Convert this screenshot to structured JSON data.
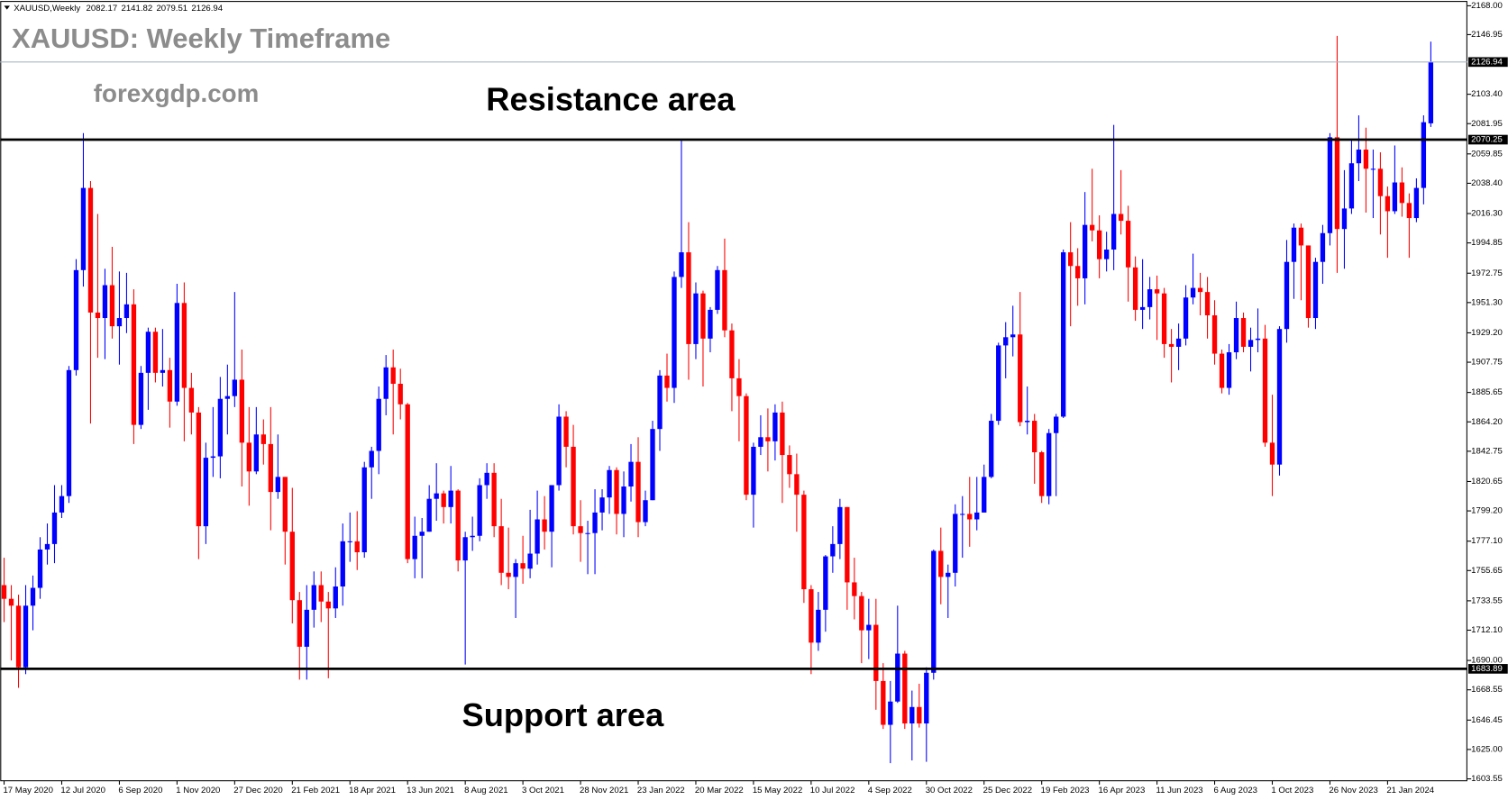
{
  "chart_data": {
    "type": "candlestick",
    "symbol": "XAUUSD,Weekly",
    "title": "XAUUSD: Weekly Timeframe",
    "watermark": "forexgdp.com",
    "annotations": [
      "Resistance area",
      "Support area"
    ],
    "up_color": "#0000ff",
    "down_color": "#ff0000",
    "levels": [
      2070.25,
      1683.89
    ],
    "level_color": "#000000",
    "price_line_color": "#a9b8c6",
    "ylim": [
      1602.15,
      2170.81
    ],
    "yticks": [
      {
        "value": 2168,
        "label": "2168.00"
      },
      2146.95,
      {
        "value": 2103.4,
        "label": "2103.40"
      },
      2081.95,
      2059.85,
      {
        "value": 2038.4,
        "label": "2038.40"
      },
      {
        "value": 2016.3,
        "label": "2016.30"
      },
      1994.85,
      1972.75,
      {
        "value": 1951.3,
        "label": "1951.30"
      },
      {
        "value": 1929.2,
        "label": "1929.20"
      },
      1907.75,
      1885.65,
      {
        "value": 1864.2,
        "label": "1864.20"
      },
      1842.75,
      1820.65,
      {
        "value": 1799.2,
        "label": "1799.20"
      },
      {
        "value": 1777.1,
        "label": "1777.10"
      },
      1755.65,
      1733.55,
      {
        "value": 1712.1,
        "label": "1712.10"
      },
      {
        "value": 1690,
        "label": "1690.00"
      },
      1668.55,
      1646.45,
      {
        "value": 1625,
        "label": "1625.00"
      },
      1603.55
    ],
    "categories": [
      "17 May 2020",
      null,
      null,
      null,
      null,
      null,
      null,
      null,
      "12 Jul 2020",
      null,
      null,
      null,
      null,
      null,
      null,
      null,
      "6 Sep 2020",
      null,
      null,
      null,
      null,
      null,
      null,
      null,
      "1 Nov 2020",
      null,
      null,
      null,
      null,
      null,
      null,
      null,
      "27 Dec 2020",
      null,
      null,
      null,
      null,
      null,
      null,
      null,
      "21 Feb 2021",
      null,
      null,
      null,
      null,
      null,
      null,
      null,
      "18 Apr 2021",
      null,
      null,
      null,
      null,
      null,
      null,
      null,
      "13 Jun 2021",
      null,
      null,
      null,
      null,
      null,
      null,
      null,
      "8 Aug 2021",
      null,
      null,
      null,
      null,
      null,
      null,
      null,
      "3 Oct 2021",
      null,
      null,
      null,
      null,
      null,
      null,
      null,
      "28 Nov 2021",
      null,
      null,
      null,
      null,
      null,
      null,
      null,
      "23 Jan 2022",
      null,
      null,
      null,
      null,
      null,
      null,
      null,
      "20 Mar 2022",
      null,
      null,
      null,
      null,
      null,
      null,
      null,
      "15 May 2022",
      null,
      null,
      null,
      null,
      null,
      null,
      null,
      "10 Jul 2022",
      null,
      null,
      null,
      null,
      null,
      null,
      null,
      "4 Sep 2022",
      null,
      null,
      null,
      null,
      null,
      null,
      null,
      "30 Oct 2022",
      null,
      null,
      null,
      null,
      null,
      null,
      null,
      "25 Dec 2022",
      null,
      null,
      null,
      null,
      null,
      null,
      null,
      "19 Feb 2023",
      null,
      null,
      null,
      null,
      null,
      null,
      null,
      "16 Apr 2023",
      null,
      null,
      null,
      null,
      null,
      null,
      null,
      "11 Jun 2023",
      null,
      null,
      null,
      null,
      null,
      null,
      null,
      "6 Aug 2023",
      null,
      null,
      null,
      null,
      null,
      null,
      null,
      "1 Oct 2023",
      null,
      null,
      null,
      null,
      null,
      null,
      null,
      "26 Nov 2023",
      null,
      null,
      null,
      null,
      null,
      null,
      null,
      "21 Jan 2024",
      null,
      null,
      null,
      null,
      null,
      null
    ],
    "candles": [
      [
        1745,
        1765,
        1718,
        1735
      ],
      [
        1735,
        1745,
        1690,
        1730
      ],
      [
        1730,
        1738,
        1670,
        1685
      ],
      [
        1685,
        1745,
        1680,
        1730
      ],
      [
        1730,
        1752,
        1712,
        1743
      ],
      [
        1743,
        1780,
        1735,
        1771
      ],
      [
        1771,
        1790,
        1760,
        1775
      ],
      [
        1775,
        1818,
        1761,
        1798
      ],
      [
        1798,
        1818,
        1794,
        1810
      ],
      [
        1810,
        1905,
        1805,
        1902
      ],
      [
        1902,
        1983,
        1898,
        1975
      ],
      [
        1975,
        2075,
        1963,
        2035
      ],
      [
        2035,
        2040,
        1863,
        1944
      ],
      [
        1944,
        2016,
        1911,
        1940
      ],
      [
        1940,
        1976,
        1910,
        1964
      ],
      [
        1964,
        1992,
        1925,
        1934
      ],
      [
        1934,
        1974,
        1906,
        1940
      ],
      [
        1940,
        1973,
        1929,
        1950
      ],
      [
        1950,
        1961,
        1848,
        1862
      ],
      [
        1862,
        1905,
        1859,
        1900
      ],
      [
        1900,
        1933,
        1873,
        1930
      ],
      [
        1930,
        1933,
        1893,
        1900
      ],
      [
        1900,
        1932,
        1890,
        1902
      ],
      [
        1902,
        1911,
        1860,
        1879
      ],
      [
        1879,
        1965,
        1876,
        1951
      ],
      [
        1951,
        1966,
        1850,
        1889
      ],
      [
        1889,
        1900,
        1855,
        1871
      ],
      [
        1871,
        1875,
        1764,
        1788
      ],
      [
        1788,
        1849,
        1775,
        1838
      ],
      [
        1838,
        1875,
        1824,
        1839
      ],
      [
        1839,
        1897,
        1823,
        1881
      ],
      [
        1881,
        1906,
        1855,
        1883
      ],
      [
        1883,
        1959,
        1875,
        1895
      ],
      [
        1895,
        1917,
        1817,
        1849
      ],
      [
        1849,
        1875,
        1803,
        1828
      ],
      [
        1828,
        1875,
        1826,
        1855
      ],
      [
        1855,
        1866,
        1833,
        1848
      ],
      [
        1848,
        1875,
        1785,
        1813
      ],
      [
        1813,
        1855,
        1808,
        1824
      ],
      [
        1824,
        1824,
        1760,
        1784
      ],
      [
        1784,
        1816,
        1717,
        1734
      ],
      [
        1734,
        1740,
        1676,
        1700
      ],
      [
        1700,
        1745,
        1676,
        1727
      ],
      [
        1727,
        1755,
        1714,
        1745
      ],
      [
        1745,
        1755,
        1718,
        1733
      ],
      [
        1733,
        1740,
        1677,
        1728
      ],
      [
        1728,
        1758,
        1721,
        1744
      ],
      [
        1744,
        1790,
        1730,
        1777
      ],
      [
        1777,
        1798,
        1762,
        1777
      ],
      [
        1777,
        1799,
        1756,
        1769
      ],
      [
        1769,
        1835,
        1765,
        1831
      ],
      [
        1831,
        1846,
        1808,
        1843
      ],
      [
        1843,
        1890,
        1826,
        1881
      ],
      [
        1881,
        1913,
        1869,
        1904
      ],
      [
        1904,
        1917,
        1855,
        1892
      ],
      [
        1892,
        1903,
        1866,
        1877
      ],
      [
        1877,
        1878,
        1761,
        1764
      ],
      [
        1764,
        1795,
        1750,
        1781
      ],
      [
        1781,
        1794,
        1750,
        1784
      ],
      [
        1784,
        1818,
        1784,
        1808
      ],
      [
        1808,
        1834,
        1792,
        1812
      ],
      [
        1812,
        1814,
        1790,
        1802
      ],
      [
        1802,
        1832,
        1790,
        1814
      ],
      [
        1814,
        1815,
        1755,
        1763
      ],
      [
        1763,
        1784,
        1687,
        1780
      ],
      [
        1780,
        1795,
        1770,
        1781
      ],
      [
        1781,
        1823,
        1777,
        1818
      ],
      [
        1818,
        1834,
        1808,
        1827
      ],
      [
        1827,
        1834,
        1780,
        1788
      ],
      [
        1788,
        1808,
        1745,
        1754
      ],
      [
        1754,
        1787,
        1742,
        1751
      ],
      [
        1751,
        1764,
        1721,
        1761
      ],
      [
        1761,
        1781,
        1746,
        1757
      ],
      [
        1757,
        1800,
        1750,
        1768
      ],
      [
        1768,
        1814,
        1760,
        1793
      ],
      [
        1793,
        1810,
        1771,
        1784
      ],
      [
        1784,
        1818,
        1758,
        1818
      ],
      [
        1818,
        1877,
        1814,
        1868
      ],
      [
        1868,
        1872,
        1831,
        1846
      ],
      [
        1846,
        1862,
        1782,
        1788
      ],
      [
        1788,
        1807,
        1762,
        1783
      ],
      [
        1783,
        1792,
        1753,
        1783
      ],
      [
        1783,
        1815,
        1753,
        1798
      ],
      [
        1798,
        1815,
        1785,
        1809
      ],
      [
        1809,
        1832,
        1797,
        1829
      ],
      [
        1829,
        1831,
        1782,
        1797
      ],
      [
        1797,
        1828,
        1780,
        1817
      ],
      [
        1817,
        1848,
        1806,
        1835
      ],
      [
        1835,
        1853,
        1780,
        1791
      ],
      [
        1791,
        1814,
        1788,
        1807
      ],
      [
        1807,
        1865,
        1807,
        1859
      ],
      [
        1859,
        1902,
        1843,
        1898
      ],
      [
        1898,
        1914,
        1879,
        1889
      ],
      [
        1889,
        1974,
        1878,
        1970
      ],
      [
        1970,
        2070,
        1962,
        1988
      ],
      [
        1988,
        2010,
        1895,
        1921
      ],
      [
        1921,
        1966,
        1910,
        1958
      ],
      [
        1958,
        1960,
        1890,
        1925
      ],
      [
        1925,
        1948,
        1915,
        1946
      ],
      [
        1946,
        1978,
        1943,
        1975
      ],
      [
        1975,
        1998,
        1926,
        1931
      ],
      [
        1931,
        1936,
        1872,
        1896
      ],
      [
        1896,
        1910,
        1850,
        1883
      ],
      [
        1883,
        1885,
        1807,
        1811
      ],
      [
        1811,
        1849,
        1787,
        1846
      ],
      [
        1846,
        1869,
        1840,
        1853
      ],
      [
        1853,
        1874,
        1828,
        1850
      ],
      [
        1850,
        1877,
        1836,
        1871
      ],
      [
        1871,
        1879,
        1805,
        1840
      ],
      [
        1840,
        1847,
        1816,
        1826
      ],
      [
        1826,
        1841,
        1784,
        1811
      ],
      [
        1811,
        1814,
        1732,
        1742
      ],
      [
        1742,
        1745,
        1680,
        1703
      ],
      [
        1703,
        1740,
        1697,
        1727
      ],
      [
        1727,
        1767,
        1711,
        1766
      ],
      [
        1766,
        1788,
        1754,
        1775
      ],
      [
        1775,
        1808,
        1764,
        1802
      ],
      [
        1802,
        1802,
        1727,
        1747
      ],
      [
        1747,
        1765,
        1720,
        1737
      ],
      [
        1737,
        1740,
        1688,
        1712
      ],
      [
        1712,
        1735,
        1691,
        1716
      ],
      [
        1716,
        1735,
        1654,
        1675
      ],
      [
        1675,
        1688,
        1640,
        1643
      ],
      [
        1643,
        1675,
        1615,
        1660
      ],
      [
        1660,
        1730,
        1659,
        1695
      ],
      [
        1695,
        1697,
        1640,
        1644
      ],
      [
        1644,
        1668,
        1617,
        1656
      ],
      [
        1656,
        1673,
        1641,
        1644
      ],
      [
        1644,
        1685,
        1616,
        1681
      ],
      [
        1681,
        1771,
        1676,
        1770
      ],
      [
        1770,
        1787,
        1731,
        1751
      ],
      [
        1751,
        1760,
        1721,
        1754
      ],
      [
        1754,
        1804,
        1744,
        1797
      ],
      [
        1797,
        1810,
        1765,
        1797
      ],
      [
        1797,
        1824,
        1773,
        1793
      ],
      [
        1793,
        1824,
        1785,
        1798
      ],
      [
        1798,
        1833,
        1798,
        1824
      ],
      [
        1824,
        1870,
        1823,
        1865
      ],
      [
        1865,
        1922,
        1862,
        1920
      ],
      [
        1920,
        1937,
        1896,
        1926
      ],
      [
        1926,
        1949,
        1912,
        1928
      ],
      [
        1928,
        1959,
        1861,
        1864
      ],
      [
        1864,
        1890,
        1855,
        1865
      ],
      [
        1865,
        1870,
        1819,
        1842
      ],
      [
        1842,
        1843,
        1805,
        1810
      ],
      [
        1810,
        1859,
        1804,
        1856
      ],
      [
        1856,
        1870,
        1810,
        1868
      ],
      [
        1868,
        1990,
        1867,
        1988
      ],
      [
        1988,
        2010,
        1934,
        1978
      ],
      [
        1978,
        1991,
        1949,
        1969
      ],
      [
        1969,
        2032,
        1950,
        2008
      ],
      [
        2008,
        2049,
        1996,
        2004
      ],
      [
        2004,
        2015,
        1969,
        1983
      ],
      [
        1983,
        2003,
        1974,
        1990
      ],
      [
        1990,
        2081,
        1975,
        2016
      ],
      [
        2016,
        2048,
        2001,
        2011
      ],
      [
        2011,
        2022,
        1952,
        1977
      ],
      [
        1977,
        1985,
        1938,
        1946
      ],
      [
        1946,
        1983,
        1932,
        1948
      ],
      [
        1948,
        1970,
        1939,
        1961
      ],
      [
        1961,
        1971,
        1924,
        1958
      ],
      [
        1958,
        1962,
        1911,
        1921
      ],
      [
        1921,
        1932,
        1893,
        1919
      ],
      [
        1919,
        1936,
        1902,
        1925
      ],
      [
        1925,
        1964,
        1920,
        1955
      ],
      [
        1955,
        1987,
        1950,
        1962
      ],
      [
        1962,
        1973,
        1942,
        1959
      ],
      [
        1959,
        1970,
        1925,
        1942
      ],
      [
        1942,
        1953,
        1906,
        1914
      ],
      [
        1914,
        1917,
        1885,
        1889
      ],
      [
        1889,
        1921,
        1884,
        1915
      ],
      [
        1915,
        1952,
        1910,
        1940
      ],
      [
        1940,
        1944,
        1915,
        1919
      ],
      [
        1919,
        1933,
        1901,
        1924
      ],
      [
        1924,
        1947,
        1915,
        1925
      ],
      [
        1925,
        1935,
        1846,
        1849
      ],
      [
        1849,
        1884,
        1810,
        1833
      ],
      [
        1833,
        1934,
        1825,
        1932
      ],
      [
        1932,
        1997,
        1922,
        1981
      ],
      [
        1981,
        2009,
        1954,
        2006
      ],
      [
        2006,
        2009,
        1953,
        1993
      ],
      [
        1993,
        1993,
        1933,
        1940
      ],
      [
        1940,
        1984,
        1932,
        1981
      ],
      [
        1981,
        2008,
        1965,
        2002
      ],
      [
        2002,
        2075,
        1993,
        2072
      ],
      [
        2072,
        2146,
        1973,
        2005
      ],
      [
        2005,
        2048,
        1976,
        2020
      ],
      [
        2020,
        2070,
        2016,
        2053
      ],
      [
        2053,
        2088,
        2040,
        2063
      ],
      [
        2063,
        2079,
        2017,
        2049
      ],
      [
        2049,
        2063,
        2013,
        2049
      ],
      [
        2049,
        2061,
        2001,
        2029
      ],
      [
        2029,
        2036,
        1984,
        2018
      ],
      [
        2018,
        2066,
        2016,
        2039
      ],
      [
        2039,
        2050,
        2014,
        2024
      ],
      [
        2024,
        2031,
        1984,
        2013
      ],
      [
        2013,
        2042,
        2010,
        2035
      ],
      [
        2035,
        2088,
        2023,
        2083
      ],
      [
        2082.17,
        2141.82,
        2079.51,
        2126.94
      ]
    ]
  }
}
